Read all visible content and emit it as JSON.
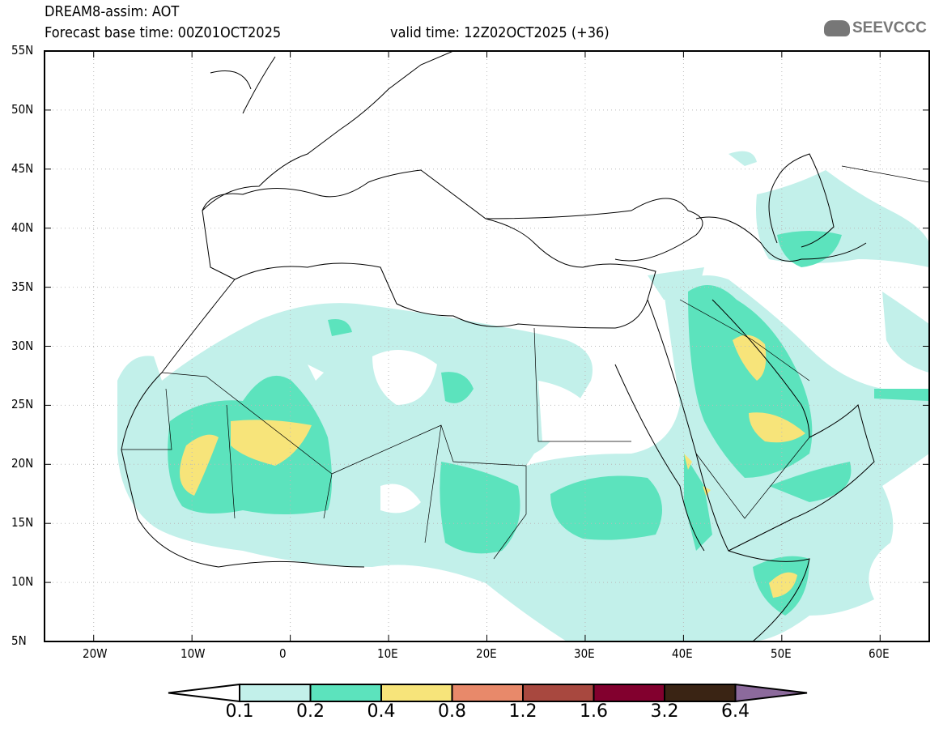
{
  "header": {
    "title": "DREAM8-assim: AOT",
    "base_time": "Forecast base time: 00Z01OCT2025",
    "valid_time": "valid time: 12Z02OCT2025 (+36)",
    "logo_text": "SEEVCCC"
  },
  "map": {
    "lat_labels": [
      "55N",
      "50N",
      "45N",
      "40N",
      "35N",
      "30N",
      "25N",
      "20N",
      "15N",
      "10N",
      "5N"
    ],
    "lon_labels": [
      "20W",
      "10W",
      "0",
      "10E",
      "20E",
      "30E",
      "40E",
      "50E",
      "60E"
    ]
  },
  "colorbar": {
    "labels": [
      "0.1",
      "0.2",
      "0.4",
      "0.8",
      "1.2",
      "1.6",
      "3.2",
      "6.4"
    ],
    "colors": [
      "#ffffff",
      "#c2f0ea",
      "#5ce3bd",
      "#f7e47a",
      "#e8896a",
      "#a8483f",
      "#82002e",
      "#3a2414",
      "#8c6a9c"
    ]
  }
}
